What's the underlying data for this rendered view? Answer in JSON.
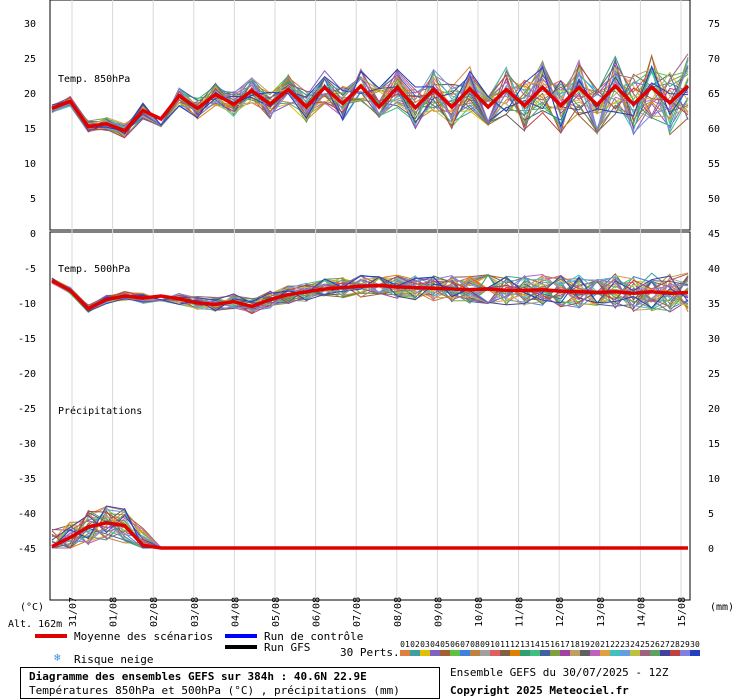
{
  "chart_data": {
    "type": "line",
    "title": "Diagramme des ensembles GEFS sur 384h : 40.6N 22.9E",
    "subtitle": "Températures 850hPa et 500hPa (°C) , précipitations (mm)",
    "run": "Ensemble GEFS du 30/07/2025 - 12Z",
    "copyright": "Copyright 2025 Meteociel.fr",
    "altitude": "Alt. 162m",
    "left_unit": "(°C)",
    "right_unit": "(mm)",
    "panel_labels": [
      "Temp. 850hPa",
      "Temp. 500hPa",
      "Précipitations"
    ],
    "y_left_ticks": [
      "30",
      "25",
      "20",
      "15",
      "10",
      "5",
      "0",
      "-5",
      "-10",
      "-15",
      "-20",
      "-25",
      "-30",
      "-35",
      "-40",
      "-45"
    ],
    "y_right_ticks": [
      "75",
      "70",
      "65",
      "60",
      "55",
      "50",
      "45",
      "40",
      "35",
      "30",
      "25",
      "20",
      "15",
      "10",
      "5",
      "0"
    ],
    "x_dates": [
      "31/07",
      "01/08",
      "02/08",
      "03/08",
      "04/08",
      "05/08",
      "06/08",
      "07/08",
      "08/08",
      "09/08",
      "10/08",
      "11/08",
      "12/08",
      "13/08",
      "14/08",
      "15/08"
    ],
    "t850_mean": [
      17.8,
      18.8,
      15.2,
      15.6,
      14.6,
      17.5,
      16.3,
      19.6,
      17.8,
      19.8,
      18.4,
      20.3,
      18.4,
      20.5,
      18.0,
      20.8,
      18.5,
      21.0,
      18.0,
      20.8,
      17.9,
      20.5,
      18.0,
      20.6,
      18.0,
      20.5,
      18.2,
      20.8,
      18.2,
      20.8,
      18.3,
      21.0,
      18.4,
      20.8,
      18.6,
      21.0
    ],
    "t500_mean": [
      -6.8,
      -8.2,
      -10.8,
      -9.5,
      -9.0,
      -9.3,
      -9.0,
      -9.4,
      -10.0,
      -10.2,
      -9.8,
      -10.5,
      -9.5,
      -8.8,
      -8.4,
      -8.0,
      -7.8,
      -7.6,
      -7.5,
      -7.7,
      -7.8,
      -7.9,
      -8.0,
      -8.1,
      -8.0,
      -8.2,
      -8.2,
      -8.1,
      -8.3,
      -8.4,
      -8.5,
      -8.4,
      -8.6,
      -8.4,
      -8.6,
      -8.5
    ],
    "precip_mean": [
      0.2,
      1.5,
      3.0,
      3.6,
      3.2,
      0.4,
      0,
      0,
      0,
      0,
      0,
      0,
      0,
      0,
      0,
      0,
      0,
      0,
      0,
      0,
      0,
      0,
      0,
      0,
      0,
      0,
      0,
      0,
      0,
      0,
      0,
      0,
      0,
      0,
      0,
      0
    ],
    "legend": {
      "mean": "Moyenne des scénarios",
      "snow": "Risque neige",
      "control": "Run de contrôle",
      "gfs": "Run GFS",
      "perts": "30 Perts."
    },
    "pert_labels": [
      "01",
      "02",
      "03",
      "04",
      "05",
      "06",
      "07",
      "08",
      "09",
      "10",
      "11",
      "12",
      "13",
      "14",
      "15",
      "16",
      "17",
      "18",
      "19",
      "20",
      "21",
      "22",
      "23",
      "24",
      "25",
      "26",
      "27",
      "28",
      "29",
      "30"
    ],
    "pert_colors": [
      "#e08040",
      "#40a0a0",
      "#e0c000",
      "#8060c0",
      "#a06030",
      "#60c040",
      "#4080e0",
      "#c08040",
      "#a0a0a0",
      "#e06060",
      "#806040",
      "#e08000",
      "#30a070",
      "#40c080",
      "#4060a0",
      "#80a040",
      "#a040a0",
      "#c0a060",
      "#606060",
      "#c060c0",
      "#e0a040",
      "#40c0c0",
      "#60a0e0",
      "#c0c040",
      "#a06080",
      "#60a060",
      "#4040a0",
      "#c04040",
      "#8080e0",
      "#2040c0"
    ]
  }
}
